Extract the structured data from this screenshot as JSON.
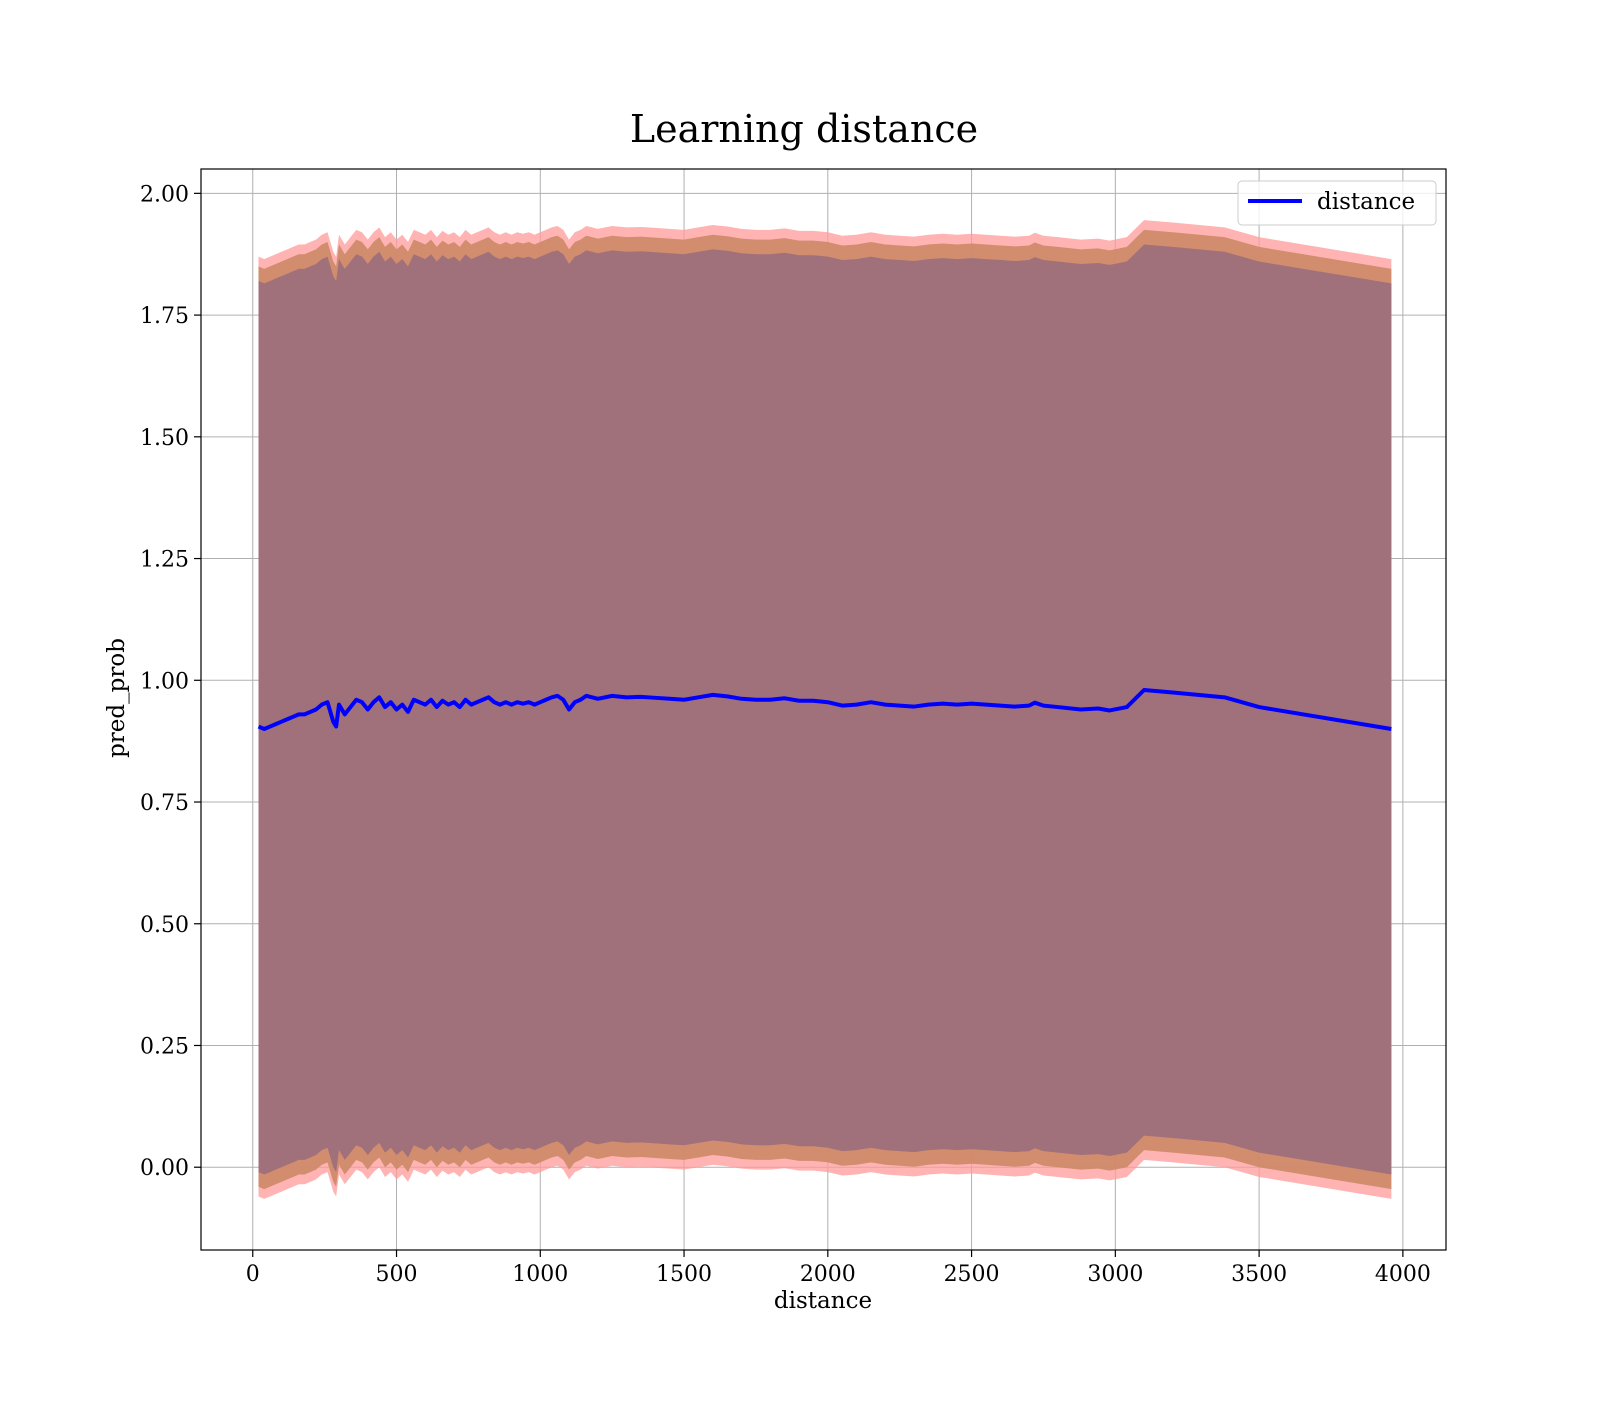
{
  "chart_data": {
    "type": "line",
    "title": "Learning distance",
    "xlabel": "distance",
    "ylabel": "pred_prob",
    "xlim": [
      -180,
      4150
    ],
    "ylim": [
      -0.17,
      2.05
    ],
    "xticks": [
      0,
      500,
      1000,
      1500,
      2000,
      2500,
      3000,
      3500,
      4000
    ],
    "xtick_labels": [
      "0",
      "500",
      "1000",
      "1500",
      "2000",
      "2500",
      "3000",
      "3500",
      "4000"
    ],
    "yticks": [
      0.0,
      0.25,
      0.5,
      0.75,
      1.0,
      1.25,
      1.5,
      1.75,
      2.0
    ],
    "ytick_labels": [
      "0.00",
      "0.25",
      "0.50",
      "0.75",
      "1.00",
      "1.25",
      "1.50",
      "1.75",
      "2.00"
    ],
    "grid": true,
    "legend": {
      "position": "upper-right",
      "entries": [
        "distance"
      ]
    },
    "colors": {
      "line": "#0000ff",
      "band_outer": "#ff9999",
      "band_middle": "#cc8866",
      "band_inner": "#a0717a",
      "grid": "#b0b0b0"
    },
    "series": [
      {
        "name": "distance",
        "x": [
          20,
          40,
          60,
          80,
          100,
          120,
          140,
          160,
          180,
          200,
          220,
          240,
          260,
          280,
          290,
          300,
          320,
          340,
          360,
          380,
          400,
          420,
          440,
          460,
          480,
          500,
          520,
          540,
          560,
          580,
          600,
          620,
          640,
          660,
          680,
          700,
          720,
          740,
          760,
          780,
          800,
          820,
          840,
          860,
          880,
          900,
          920,
          940,
          960,
          980,
          1000,
          1020,
          1040,
          1060,
          1080,
          1100,
          1120,
          1140,
          1160,
          1180,
          1200,
          1250,
          1300,
          1350,
          1400,
          1450,
          1500,
          1550,
          1600,
          1650,
          1700,
          1750,
          1800,
          1850,
          1900,
          1950,
          2000,
          2050,
          2100,
          2150,
          2200,
          2250,
          2300,
          2350,
          2400,
          2450,
          2500,
          2550,
          2600,
          2650,
          2700,
          2720,
          2750,
          2800,
          2880,
          2940,
          2980,
          3040,
          3100,
          3200,
          3380,
          3500,
          3960
        ],
        "y": [
          0.905,
          0.9,
          0.905,
          0.91,
          0.915,
          0.92,
          0.925,
          0.93,
          0.93,
          0.935,
          0.94,
          0.95,
          0.955,
          0.915,
          0.905,
          0.95,
          0.93,
          0.945,
          0.96,
          0.955,
          0.94,
          0.955,
          0.965,
          0.945,
          0.955,
          0.94,
          0.95,
          0.935,
          0.96,
          0.955,
          0.95,
          0.96,
          0.945,
          0.958,
          0.95,
          0.955,
          0.945,
          0.96,
          0.95,
          0.955,
          0.96,
          0.965,
          0.955,
          0.95,
          0.955,
          0.95,
          0.955,
          0.952,
          0.955,
          0.95,
          0.955,
          0.96,
          0.965,
          0.968,
          0.96,
          0.94,
          0.955,
          0.96,
          0.968,
          0.965,
          0.962,
          0.968,
          0.965,
          0.966,
          0.964,
          0.962,
          0.96,
          0.965,
          0.97,
          0.967,
          0.962,
          0.96,
          0.96,
          0.963,
          0.958,
          0.958,
          0.955,
          0.948,
          0.95,
          0.955,
          0.95,
          0.948,
          0.946,
          0.95,
          0.952,
          0.95,
          0.952,
          0.95,
          0.948,
          0.946,
          0.948,
          0.954,
          0.948,
          0.945,
          0.94,
          0.942,
          0.938,
          0.945,
          0.98,
          0.975,
          0.965,
          0.945,
          0.9
        ]
      }
    ],
    "bands": [
      {
        "name": "outer",
        "half_width": 0.965
      },
      {
        "name": "middle",
        "half_width": 0.945
      },
      {
        "name": "inner",
        "half_width": 0.915
      }
    ]
  }
}
